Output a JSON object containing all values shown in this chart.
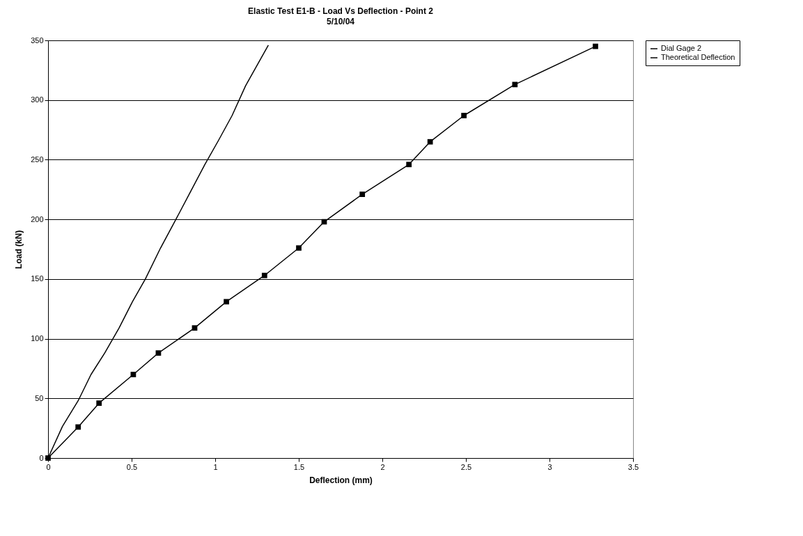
{
  "chart_data": {
    "type": "line",
    "title": "Elastic Test E1-B - Load Vs Deflection - Point 2",
    "subtitle": "5/10/04",
    "xlabel": "Deflection (mm)",
    "ylabel": "Load (kN)",
    "xlim": [
      0,
      3.5
    ],
    "xticks": [
      0,
      0.5,
      1,
      1.5,
      2,
      2.5,
      3,
      3.5
    ],
    "ylim": [
      0,
      350
    ],
    "yticks": [
      0,
      50,
      100,
      150,
      200,
      250,
      300,
      350
    ],
    "grid": "y",
    "legend": "right",
    "series": [
      {
        "name": "Dial Gage 2",
        "color": "#000000",
        "marker": "square",
        "x": [
          0,
          0.18,
          0.305,
          0.51,
          0.66,
          0.877,
          1.067,
          1.295,
          1.5,
          1.652,
          1.88,
          2.159,
          2.286,
          2.488,
          2.793,
          3.275
        ],
        "values": [
          0,
          26,
          46,
          70,
          88,
          109,
          131,
          153,
          176,
          198,
          221,
          246,
          265,
          287,
          313,
          345
        ]
      },
      {
        "name": "Theoretical Deflection",
        "color": "#000000",
        "marker": "none",
        "x": [
          0,
          0.086,
          0.18,
          0.257,
          0.339,
          0.425,
          0.505,
          0.582,
          0.673,
          0.765,
          0.848,
          0.938,
          1.019,
          1.101,
          1.182,
          1.318
        ],
        "values": [
          0,
          26.5,
          48,
          70,
          88,
          109,
          131,
          150,
          176,
          200,
          222,
          246,
          266,
          287,
          312,
          346
        ]
      }
    ]
  }
}
